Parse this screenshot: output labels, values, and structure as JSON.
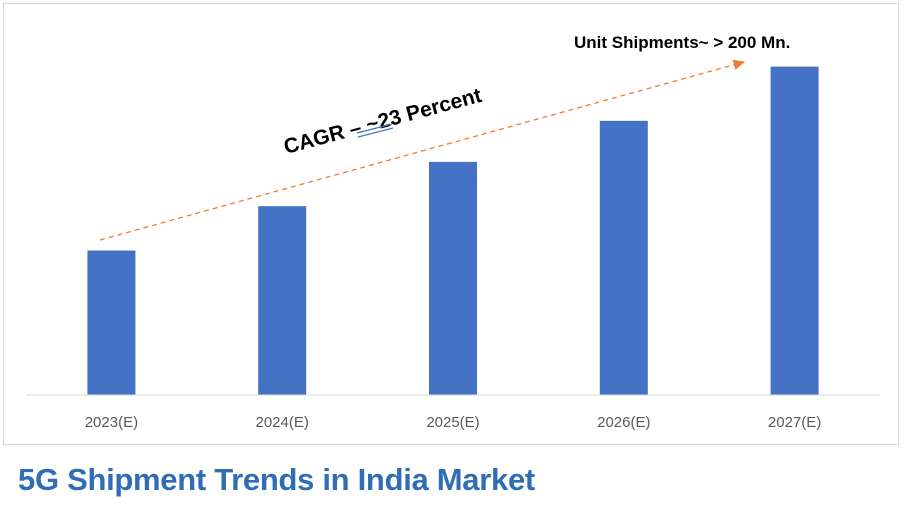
{
  "caption": "5G Shipment Trends in India Market",
  "chart_data": {
    "type": "bar",
    "categories": [
      "2023(E)",
      "2024(E)",
      "2025(E)",
      "2026(E)",
      "2027(E)"
    ],
    "values": [
      88,
      115,
      142,
      167,
      200
    ],
    "ylim": [
      0,
      215
    ],
    "grid": false,
    "legend": "none",
    "bar_color": "#4472c4",
    "annotations": {
      "cagr": "CAGR –  ~23 Percent",
      "shipments": "Unit Shipments~ > 200 Mn."
    },
    "trend_arrow_color": "#ed7d31"
  }
}
